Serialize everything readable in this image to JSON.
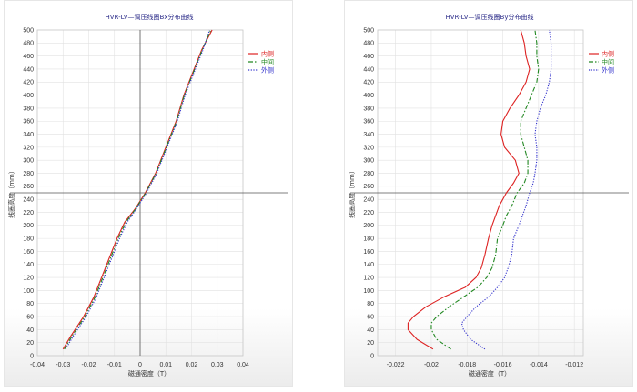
{
  "chart_data": [
    {
      "type": "line",
      "title": "HVR-LV—调压线圈Bx分布曲线",
      "xlabel": "磁通密度（T）",
      "ylabel": "线圈高度（mm）",
      "xlim": [
        -0.04,
        0.04
      ],
      "ylim": [
        0,
        500
      ],
      "xticks": [
        -0.04,
        -0.03,
        -0.02,
        -0.01,
        0,
        0.01,
        0.02,
        0.03,
        0.04
      ],
      "xtick_labels": [
        "-0.04",
        "-0.03",
        "-0.02",
        "-0.01",
        "0",
        "0.01",
        "0.02",
        "0.03",
        "0.04"
      ],
      "yticks": [
        0,
        20,
        40,
        60,
        80,
        100,
        120,
        140,
        160,
        180,
        200,
        220,
        240,
        260,
        280,
        300,
        320,
        340,
        360,
        380,
        400,
        420,
        440,
        460,
        480,
        500
      ],
      "yline": 250,
      "xline": 0,
      "grid": true,
      "legend_position": "top-right",
      "series": [
        {
          "name": "内侧",
          "color": "#dd2222",
          "dash": "",
          "points": [
            [
              -0.03,
              10
            ],
            [
              -0.027,
              30
            ],
            [
              -0.022,
              60
            ],
            [
              -0.018,
              90
            ],
            [
              -0.015,
              120
            ],
            [
              -0.012,
              150
            ],
            [
              -0.009,
              180
            ],
            [
              -0.006,
              205
            ],
            [
              -0.002,
              225
            ],
            [
              0.002,
              250
            ],
            [
              0.006,
              280
            ],
            [
              0.01,
              320
            ],
            [
              0.014,
              360
            ],
            [
              0.017,
              400
            ],
            [
              0.021,
              440
            ],
            [
              0.024,
              470
            ],
            [
              0.028,
              500
            ]
          ]
        },
        {
          "name": "中间",
          "color": "#228822",
          "dash": "5,2,1.5,2",
          "points": [
            [
              -0.0295,
              10
            ],
            [
              -0.0265,
              30
            ],
            [
              -0.0215,
              60
            ],
            [
              -0.0175,
              90
            ],
            [
              -0.0145,
              120
            ],
            [
              -0.0115,
              150
            ],
            [
              -0.0085,
              180
            ],
            [
              -0.0055,
              205
            ],
            [
              -0.0018,
              225
            ],
            [
              0.0022,
              250
            ],
            [
              0.0062,
              280
            ],
            [
              0.0102,
              320
            ],
            [
              0.0142,
              360
            ],
            [
              0.0172,
              400
            ],
            [
              0.0212,
              440
            ],
            [
              0.0242,
              470
            ],
            [
              0.0275,
              500
            ]
          ]
        },
        {
          "name": "外侧",
          "color": "#3333cc",
          "dash": "1.2,1.5",
          "points": [
            [
              -0.029,
              10
            ],
            [
              -0.026,
              30
            ],
            [
              -0.021,
              60
            ],
            [
              -0.017,
              90
            ],
            [
              -0.014,
              120
            ],
            [
              -0.011,
              150
            ],
            [
              -0.008,
              180
            ],
            [
              -0.005,
              205
            ],
            [
              -0.0015,
              225
            ],
            [
              0.0025,
              250
            ],
            [
              0.0065,
              280
            ],
            [
              0.0105,
              320
            ],
            [
              0.0145,
              360
            ],
            [
              0.0175,
              400
            ],
            [
              0.0215,
              440
            ],
            [
              0.0245,
              470
            ],
            [
              0.027,
              500
            ]
          ]
        }
      ]
    },
    {
      "type": "line",
      "title": "HVR-LV—调压线圈By分布曲线",
      "xlabel": "磁通密度（T）",
      "ylabel": "线圈高度（mm）",
      "xlim": [
        -0.023,
        -0.0115
      ],
      "ylim": [
        0,
        500
      ],
      "xticks": [
        -0.022,
        -0.02,
        -0.018,
        -0.016,
        -0.014,
        -0.012
      ],
      "xtick_labels": [
        "-0.022",
        "-0.02",
        "-0.018",
        "-0.016",
        "-0.014",
        "-0.012"
      ],
      "yticks": [
        0,
        20,
        40,
        60,
        80,
        100,
        120,
        140,
        160,
        180,
        200,
        220,
        240,
        260,
        280,
        300,
        320,
        340,
        360,
        380,
        400,
        420,
        440,
        460,
        480,
        500
      ],
      "yline": 250,
      "xline": null,
      "grid": true,
      "legend_position": "top-right",
      "series": [
        {
          "name": "内侧",
          "color": "#dd2222",
          "dash": "",
          "points": [
            [
              -0.0199,
              10
            ],
            [
              -0.0208,
              25
            ],
            [
              -0.0213,
              40
            ],
            [
              -0.0213,
              50
            ],
            [
              -0.021,
              60
            ],
            [
              -0.0203,
              75
            ],
            [
              -0.0193,
              90
            ],
            [
              -0.0181,
              105
            ],
            [
              -0.0175,
              120
            ],
            [
              -0.0172,
              135
            ],
            [
              -0.017,
              155
            ],
            [
              -0.0168,
              180
            ],
            [
              -0.0166,
              200
            ],
            [
              -0.0164,
              215
            ],
            [
              -0.0162,
              230
            ],
            [
              -0.0158,
              250
            ],
            [
              -0.0154,
              265
            ],
            [
              -0.0151,
              280
            ],
            [
              -0.0153,
              300
            ],
            [
              -0.0159,
              320
            ],
            [
              -0.0161,
              340
            ],
            [
              -0.016,
              360
            ],
            [
              -0.0156,
              380
            ],
            [
              -0.0151,
              400
            ],
            [
              -0.0147,
              420
            ],
            [
              -0.0145,
              440
            ],
            [
              -0.0147,
              460
            ],
            [
              -0.0148,
              480
            ],
            [
              -0.015,
              500
            ]
          ]
        },
        {
          "name": "中间",
          "color": "#228822",
          "dash": "5,2,1.5,2",
          "points": [
            [
              -0.0189,
              10
            ],
            [
              -0.0197,
              25
            ],
            [
              -0.02,
              40
            ],
            [
              -0.02,
              50
            ],
            [
              -0.0197,
              60
            ],
            [
              -0.019,
              75
            ],
            [
              -0.0182,
              90
            ],
            [
              -0.0174,
              105
            ],
            [
              -0.0169,
              120
            ],
            [
              -0.0166,
              135
            ],
            [
              -0.0164,
              155
            ],
            [
              -0.0163,
              180
            ],
            [
              -0.016,
              200
            ],
            [
              -0.0158,
              215
            ],
            [
              -0.0155,
              230
            ],
            [
              -0.0152,
              250
            ],
            [
              -0.0148,
              265
            ],
            [
              -0.0146,
              280
            ],
            [
              -0.0146,
              300
            ],
            [
              -0.0148,
              320
            ],
            [
              -0.015,
              340
            ],
            [
              -0.015,
              360
            ],
            [
              -0.0147,
              380
            ],
            [
              -0.0144,
              400
            ],
            [
              -0.0141,
              420
            ],
            [
              -0.014,
              440
            ],
            [
              -0.0141,
              460
            ],
            [
              -0.0141,
              480
            ],
            [
              -0.0142,
              500
            ]
          ]
        },
        {
          "name": "外侧",
          "color": "#3333cc",
          "dash": "1.2,1.5",
          "points": [
            [
              -0.017,
              10
            ],
            [
              -0.0178,
              25
            ],
            [
              -0.0182,
              40
            ],
            [
              -0.0183,
              50
            ],
            [
              -0.018,
              60
            ],
            [
              -0.0175,
              75
            ],
            [
              -0.0168,
              90
            ],
            [
              -0.0163,
              105
            ],
            [
              -0.0159,
              120
            ],
            [
              -0.0157,
              135
            ],
            [
              -0.0155,
              155
            ],
            [
              -0.0154,
              180
            ],
            [
              -0.0151,
              200
            ],
            [
              -0.0149,
              215
            ],
            [
              -0.0147,
              230
            ],
            [
              -0.0145,
              250
            ],
            [
              -0.0143,
              265
            ],
            [
              -0.0142,
              280
            ],
            [
              -0.0141,
              300
            ],
            [
              -0.0141,
              320
            ],
            [
              -0.0142,
              340
            ],
            [
              -0.0141,
              360
            ],
            [
              -0.0139,
              380
            ],
            [
              -0.0136,
              400
            ],
            [
              -0.0134,
              420
            ],
            [
              -0.0133,
              440
            ],
            [
              -0.0133,
              460
            ],
            [
              -0.0133,
              480
            ],
            [
              -0.0134,
              500
            ]
          ]
        }
      ]
    }
  ]
}
